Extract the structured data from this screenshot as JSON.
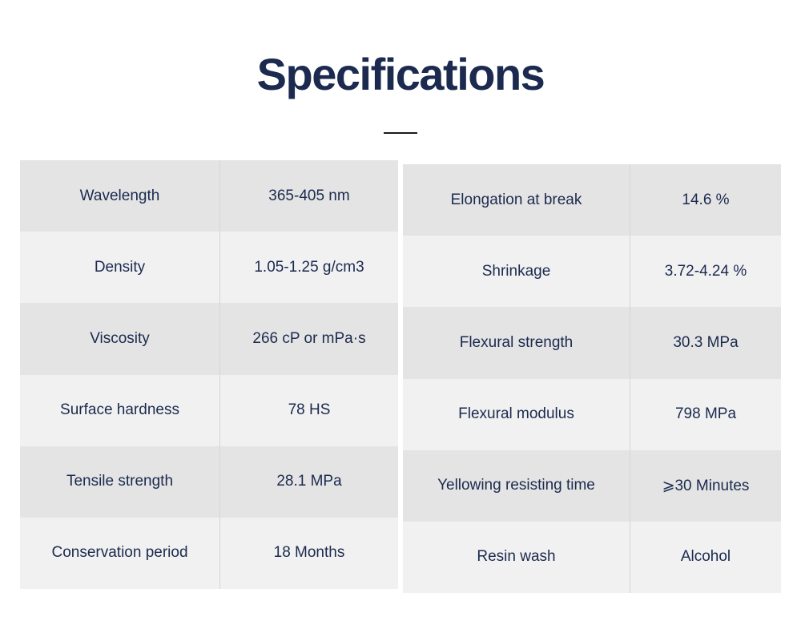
{
  "header": {
    "title": "Specifications"
  },
  "colors": {
    "title_text": "#1b2a4e",
    "cell_text": "#1b2a4e",
    "row_gray": "#e4e4e4",
    "row_light": "#f1f1f1",
    "column_divider": "#d5d5d5",
    "title_rule": "#1a1a1a"
  },
  "spec_tables": {
    "left": {
      "rows": [
        {
          "label": "Wavelength",
          "value": "365-405 nm"
        },
        {
          "label": "Density",
          "value": "1.05-1.25 g/cm3"
        },
        {
          "label": "Viscosity",
          "value": "266  cP or mPa·s"
        },
        {
          "label": "Surface hardness",
          "value": "78 HS"
        },
        {
          "label": "Tensile strength",
          "value": "28.1 MPa"
        },
        {
          "label": "Conservation period",
          "value": "18 Months"
        }
      ]
    },
    "right": {
      "rows": [
        {
          "label": "Elongation at break",
          "value": "14.6 %"
        },
        {
          "label": "Shrinkage",
          "value": "3.72-4.24 %"
        },
        {
          "label": "Flexural strength",
          "value": "30.3 MPa"
        },
        {
          "label": "Flexural modulus",
          "value": "798 MPa"
        },
        {
          "label": "Yellowing resisting time",
          "value": "⩾30 Minutes"
        },
        {
          "label": "Resin wash",
          "value": "Alcohol"
        }
      ]
    }
  }
}
